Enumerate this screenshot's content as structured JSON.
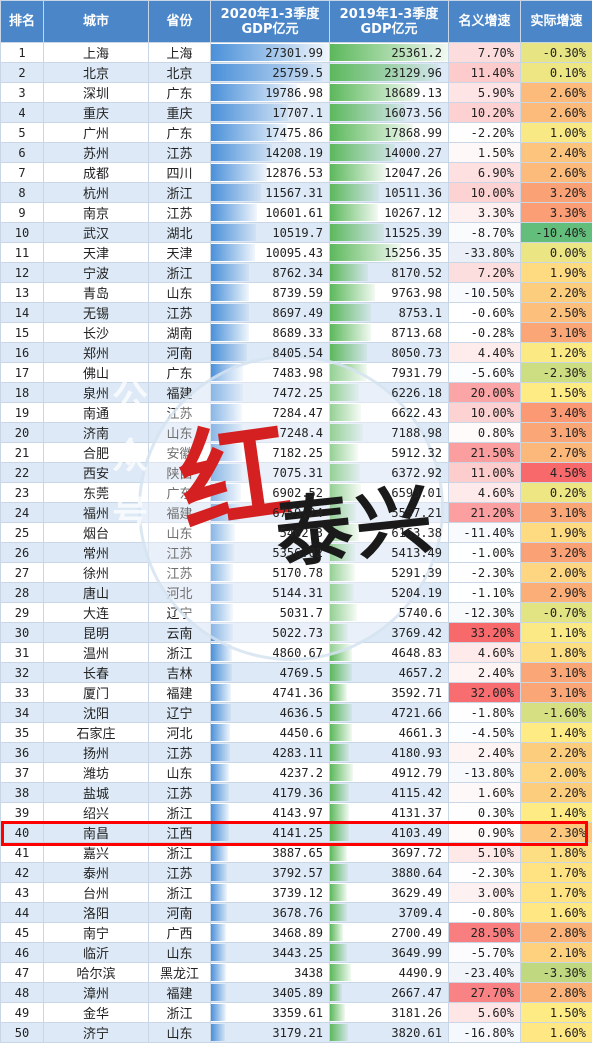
{
  "headers": {
    "rank": "排名",
    "city": "城市",
    "province": "省份",
    "gdp2020": "2020年1-3季度GDP亿元",
    "gdp2019": "2019年1-3季度GDP亿元",
    "nominal": "名义增速",
    "real": "实际增速"
  },
  "watermark": {
    "side_text": "公众号",
    "red_char": "红",
    "black_text": "泰兴"
  },
  "colors": {
    "header_bg": "#4a86c8",
    "highlight_border": "#ff0000",
    "bar_2020": "#4a90d9",
    "bar_2019": "#5cb85c"
  },
  "rows": [
    {
      "rank": "1",
      "city": "上海",
      "province": "上海",
      "gdp2020": "27301.99",
      "gdp2019": "25361.2",
      "nominal": "7.70%",
      "real": "-0.30%",
      "nominal_value": 7.7,
      "real_value": -0.3
    },
    {
      "rank": "2",
      "city": "北京",
      "province": "北京",
      "gdp2020": "25759.5",
      "gdp2019": "23129.96",
      "nominal": "11.40%",
      "real": "0.10%",
      "nominal_value": 11.4,
      "real_value": 0.1
    },
    {
      "rank": "3",
      "city": "深圳",
      "province": "广东",
      "gdp2020": "19786.98",
      "gdp2019": "18689.13",
      "nominal": "5.90%",
      "real": "2.60%",
      "nominal_value": 5.9,
      "real_value": 2.6
    },
    {
      "rank": "4",
      "city": "重庆",
      "province": "重庆",
      "gdp2020": "17707.1",
      "gdp2019": "16073.56",
      "nominal": "10.20%",
      "real": "2.60%",
      "nominal_value": 10.2,
      "real_value": 2.6
    },
    {
      "rank": "5",
      "city": "广州",
      "province": "广东",
      "gdp2020": "17475.86",
      "gdp2019": "17868.99",
      "nominal": "-2.20%",
      "real": "1.00%",
      "nominal_value": -2.2,
      "real_value": 1.0
    },
    {
      "rank": "6",
      "city": "苏州",
      "province": "江苏",
      "gdp2020": "14208.19",
      "gdp2019": "14000.27",
      "nominal": "1.50%",
      "real": "2.40%",
      "nominal_value": 1.5,
      "real_value": 2.4
    },
    {
      "rank": "7",
      "city": "成都",
      "province": "四川",
      "gdp2020": "12876.53",
      "gdp2019": "12047.26",
      "nominal": "6.90%",
      "real": "2.60%",
      "nominal_value": 6.9,
      "real_value": 2.6
    },
    {
      "rank": "8",
      "city": "杭州",
      "province": "浙江",
      "gdp2020": "11567.31",
      "gdp2019": "10511.36",
      "nominal": "10.00%",
      "real": "3.20%",
      "nominal_value": 10.0,
      "real_value": 3.2
    },
    {
      "rank": "9",
      "city": "南京",
      "province": "江苏",
      "gdp2020": "10601.61",
      "gdp2019": "10267.12",
      "nominal": "3.30%",
      "real": "3.30%",
      "nominal_value": 3.3,
      "real_value": 3.3
    },
    {
      "rank": "10",
      "city": "武汉",
      "province": "湖北",
      "gdp2020": "10519.7",
      "gdp2019": "11525.39",
      "nominal": "-8.70%",
      "real": "-10.40%",
      "nominal_value": -8.7,
      "real_value": -10.4
    },
    {
      "rank": "11",
      "city": "天津",
      "province": "天津",
      "gdp2020": "10095.43",
      "gdp2019": "15256.35",
      "nominal": "-33.80%",
      "real": "0.00%",
      "nominal_value": -33.8,
      "real_value": 0.0
    },
    {
      "rank": "12",
      "city": "宁波",
      "province": "浙江",
      "gdp2020": "8762.34",
      "gdp2019": "8170.52",
      "nominal": "7.20%",
      "real": "1.90%",
      "nominal_value": 7.2,
      "real_value": 1.9
    },
    {
      "rank": "13",
      "city": "青岛",
      "province": "山东",
      "gdp2020": "8739.59",
      "gdp2019": "9763.98",
      "nominal": "-10.50%",
      "real": "2.20%",
      "nominal_value": -10.5,
      "real_value": 2.2
    },
    {
      "rank": "14",
      "city": "无锡",
      "province": "江苏",
      "gdp2020": "8697.49",
      "gdp2019": "8753.1",
      "nominal": "-0.60%",
      "real": "2.50%",
      "nominal_value": -0.6,
      "real_value": 2.5
    },
    {
      "rank": "15",
      "city": "长沙",
      "province": "湖南",
      "gdp2020": "8689.33",
      "gdp2019": "8713.68",
      "nominal": "-0.28%",
      "real": "3.10%",
      "nominal_value": -0.28,
      "real_value": 3.1
    },
    {
      "rank": "16",
      "city": "郑州",
      "province": "河南",
      "gdp2020": "8405.54",
      "gdp2019": "8050.73",
      "nominal": "4.40%",
      "real": "1.20%",
      "nominal_value": 4.4,
      "real_value": 1.2
    },
    {
      "rank": "17",
      "city": "佛山",
      "province": "广东",
      "gdp2020": "7483.98",
      "gdp2019": "7931.79",
      "nominal": "-5.60%",
      "real": "-2.30%",
      "nominal_value": -5.6,
      "real_value": -2.3
    },
    {
      "rank": "18",
      "city": "泉州",
      "province": "福建",
      "gdp2020": "7472.25",
      "gdp2019": "6226.18",
      "nominal": "20.00%",
      "real": "1.50%",
      "nominal_value": 20.0,
      "real_value": 1.5
    },
    {
      "rank": "19",
      "city": "南通",
      "province": "江苏",
      "gdp2020": "7284.47",
      "gdp2019": "6622.43",
      "nominal": "10.00%",
      "real": "3.40%",
      "nominal_value": 10.0,
      "real_value": 3.4
    },
    {
      "rank": "20",
      "city": "济南",
      "province": "山东",
      "gdp2020": "7248.4",
      "gdp2019": "7188.98",
      "nominal": "0.80%",
      "real": "3.10%",
      "nominal_value": 0.8,
      "real_value": 3.1
    },
    {
      "rank": "21",
      "city": "合肥",
      "province": "安徽",
      "gdp2020": "7182.25",
      "gdp2019": "5912.32",
      "nominal": "21.50%",
      "real": "2.70%",
      "nominal_value": 21.5,
      "real_value": 2.7
    },
    {
      "rank": "22",
      "city": "西安",
      "province": "陕西",
      "gdp2020": "7075.31",
      "gdp2019": "6372.92",
      "nominal": "11.00%",
      "real": "4.50%",
      "nominal_value": 11.0,
      "real_value": 4.5
    },
    {
      "rank": "23",
      "city": "东莞",
      "province": "广东",
      "gdp2020": "6902.52",
      "gdp2019": "6593.01",
      "nominal": "4.60%",
      "real": "0.20%",
      "nominal_value": 4.6,
      "real_value": 0.2
    },
    {
      "rank": "24",
      "city": "福州",
      "province": "福建",
      "gdp2020": "6759.24",
      "gdp2019": "5557.21",
      "nominal": "21.20%",
      "real": "3.10%",
      "nominal_value": 21.2,
      "real_value": 3.1
    },
    {
      "rank": "25",
      "city": "烟台",
      "province": "山东",
      "gdp2020": "5462.3",
      "gdp2019": "6163.38",
      "nominal": "-11.40%",
      "real": "1.90%",
      "nominal_value": -11.4,
      "real_value": 1.9
    },
    {
      "rank": "26",
      "city": "常州",
      "province": "江苏",
      "gdp2020": "5356.02",
      "gdp2019": "5413.49",
      "nominal": "-1.00%",
      "real": "3.20%",
      "nominal_value": -1.0,
      "real_value": 3.2
    },
    {
      "rank": "27",
      "city": "徐州",
      "province": "江苏",
      "gdp2020": "5170.78",
      "gdp2019": "5291.39",
      "nominal": "-2.30%",
      "real": "2.00%",
      "nominal_value": -2.3,
      "real_value": 2.0
    },
    {
      "rank": "28",
      "city": "唐山",
      "province": "河北",
      "gdp2020": "5144.31",
      "gdp2019": "5204.19",
      "nominal": "-1.10%",
      "real": "2.90%",
      "nominal_value": -1.1,
      "real_value": 2.9
    },
    {
      "rank": "29",
      "city": "大连",
      "province": "辽宁",
      "gdp2020": "5031.7",
      "gdp2019": "5740.6",
      "nominal": "-12.30%",
      "real": "-0.70%",
      "nominal_value": -12.3,
      "real_value": -0.7
    },
    {
      "rank": "30",
      "city": "昆明",
      "province": "云南",
      "gdp2020": "5022.73",
      "gdp2019": "3769.42",
      "nominal": "33.20%",
      "real": "1.10%",
      "nominal_value": 33.2,
      "real_value": 1.1
    },
    {
      "rank": "31",
      "city": "温州",
      "province": "浙江",
      "gdp2020": "4860.67",
      "gdp2019": "4648.83",
      "nominal": "4.60%",
      "real": "1.80%",
      "nominal_value": 4.6,
      "real_value": 1.8
    },
    {
      "rank": "32",
      "city": "长春",
      "province": "吉林",
      "gdp2020": "4769.5",
      "gdp2019": "4657.2",
      "nominal": "2.40%",
      "real": "3.10%",
      "nominal_value": 2.4,
      "real_value": 3.1
    },
    {
      "rank": "33",
      "city": "厦门",
      "province": "福建",
      "gdp2020": "4741.36",
      "gdp2019": "3592.71",
      "nominal": "32.00%",
      "real": "3.10%",
      "nominal_value": 32.0,
      "real_value": 3.1
    },
    {
      "rank": "34",
      "city": "沈阳",
      "province": "辽宁",
      "gdp2020": "4636.5",
      "gdp2019": "4721.66",
      "nominal": "-1.80%",
      "real": "-1.60%",
      "nominal_value": -1.8,
      "real_value": -1.6
    },
    {
      "rank": "35",
      "city": "石家庄",
      "province": "河北",
      "gdp2020": "4450.6",
      "gdp2019": "4661.3",
      "nominal": "-4.50%",
      "real": "1.40%",
      "nominal_value": -4.5,
      "real_value": 1.4
    },
    {
      "rank": "36",
      "city": "扬州",
      "province": "江苏",
      "gdp2020": "4283.11",
      "gdp2019": "4180.93",
      "nominal": "2.40%",
      "real": "2.20%",
      "nominal_value": 2.4,
      "real_value": 2.2
    },
    {
      "rank": "37",
      "city": "潍坊",
      "province": "山东",
      "gdp2020": "4237.2",
      "gdp2019": "4912.79",
      "nominal": "-13.80%",
      "real": "2.00%",
      "nominal_value": -13.8,
      "real_value": 2.0
    },
    {
      "rank": "38",
      "city": "盐城",
      "province": "江苏",
      "gdp2020": "4179.36",
      "gdp2019": "4115.42",
      "nominal": "1.60%",
      "real": "2.20%",
      "nominal_value": 1.6,
      "real_value": 2.2
    },
    {
      "rank": "39",
      "city": "绍兴",
      "province": "浙江",
      "gdp2020": "4143.97",
      "gdp2019": "4131.37",
      "nominal": "0.30%",
      "real": "1.40%",
      "nominal_value": 0.3,
      "real_value": 1.4
    },
    {
      "rank": "40",
      "city": "南昌",
      "province": "江西",
      "gdp2020": "4141.25",
      "gdp2019": "4103.49",
      "nominal": "0.90%",
      "real": "2.30%",
      "nominal_value": 0.9,
      "real_value": 2.3
    },
    {
      "rank": "41",
      "city": "嘉兴",
      "province": "浙江",
      "gdp2020": "3887.65",
      "gdp2019": "3697.72",
      "nominal": "5.10%",
      "real": "1.80%",
      "nominal_value": 5.1,
      "real_value": 1.8
    },
    {
      "rank": "42",
      "city": "泰州",
      "province": "江苏",
      "gdp2020": "3792.57",
      "gdp2019": "3880.64",
      "nominal": "-2.30%",
      "real": "1.70%",
      "nominal_value": -2.3,
      "real_value": 1.7
    },
    {
      "rank": "43",
      "city": "台州",
      "province": "浙江",
      "gdp2020": "3739.12",
      "gdp2019": "3629.49",
      "nominal": "3.00%",
      "real": "1.70%",
      "nominal_value": 3.0,
      "real_value": 1.7
    },
    {
      "rank": "44",
      "city": "洛阳",
      "province": "河南",
      "gdp2020": "3678.76",
      "gdp2019": "3709.4",
      "nominal": "-0.80%",
      "real": "1.60%",
      "nominal_value": -0.8,
      "real_value": 1.6
    },
    {
      "rank": "45",
      "city": "南宁",
      "province": "广西",
      "gdp2020": "3468.89",
      "gdp2019": "2700.49",
      "nominal": "28.50%",
      "real": "2.80%",
      "nominal_value": 28.5,
      "real_value": 2.8
    },
    {
      "rank": "46",
      "city": "临沂",
      "province": "山东",
      "gdp2020": "3443.25",
      "gdp2019": "3649.99",
      "nominal": "-5.70%",
      "real": "2.10%",
      "nominal_value": -5.7,
      "real_value": 2.1
    },
    {
      "rank": "47",
      "city": "哈尔滨",
      "province": "黑龙江",
      "gdp2020": "3438",
      "gdp2019": "4490.9",
      "nominal": "-23.40%",
      "real": "-3.30%",
      "nominal_value": -23.4,
      "real_value": -3.3
    },
    {
      "rank": "48",
      "city": "漳州",
      "province": "福建",
      "gdp2020": "3405.89",
      "gdp2019": "2667.47",
      "nominal": "27.70%",
      "real": "2.80%",
      "nominal_value": 27.7,
      "real_value": 2.8
    },
    {
      "rank": "49",
      "city": "金华",
      "province": "浙江",
      "gdp2020": "3359.61",
      "gdp2019": "3181.26",
      "nominal": "5.60%",
      "real": "1.50%",
      "nominal_value": 5.6,
      "real_value": 1.5
    },
    {
      "rank": "50",
      "city": "济宁",
      "province": "山东",
      "gdp2020": "3179.21",
      "gdp2019": "3820.61",
      "nominal": "-16.80%",
      "real": "1.60%",
      "nominal_value": -16.8,
      "real_value": 1.6
    }
  ]
}
